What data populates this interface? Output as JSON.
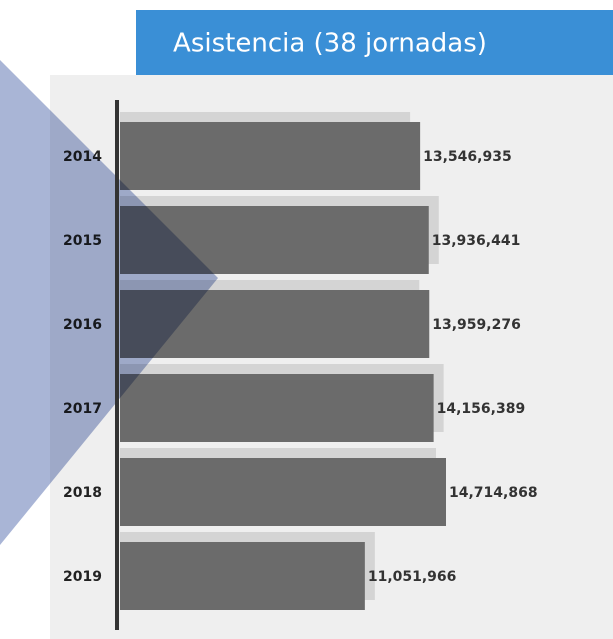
{
  "chart_data": {
    "type": "bar",
    "orientation": "horizontal",
    "title": "Asistencia (38 jornadas)",
    "categories": [
      "2014",
      "2015",
      "2016",
      "2017",
      "2018",
      "2019"
    ],
    "values": [
      13546935,
      13936441,
      13959276,
      14156389,
      14714868,
      11051966
    ],
    "value_labels": [
      "13,546,935",
      "13,936,441",
      "13,959,276",
      "14,156,389",
      "14,714,868",
      "11,051,966"
    ],
    "color": "#6b6b6b"
  }
}
